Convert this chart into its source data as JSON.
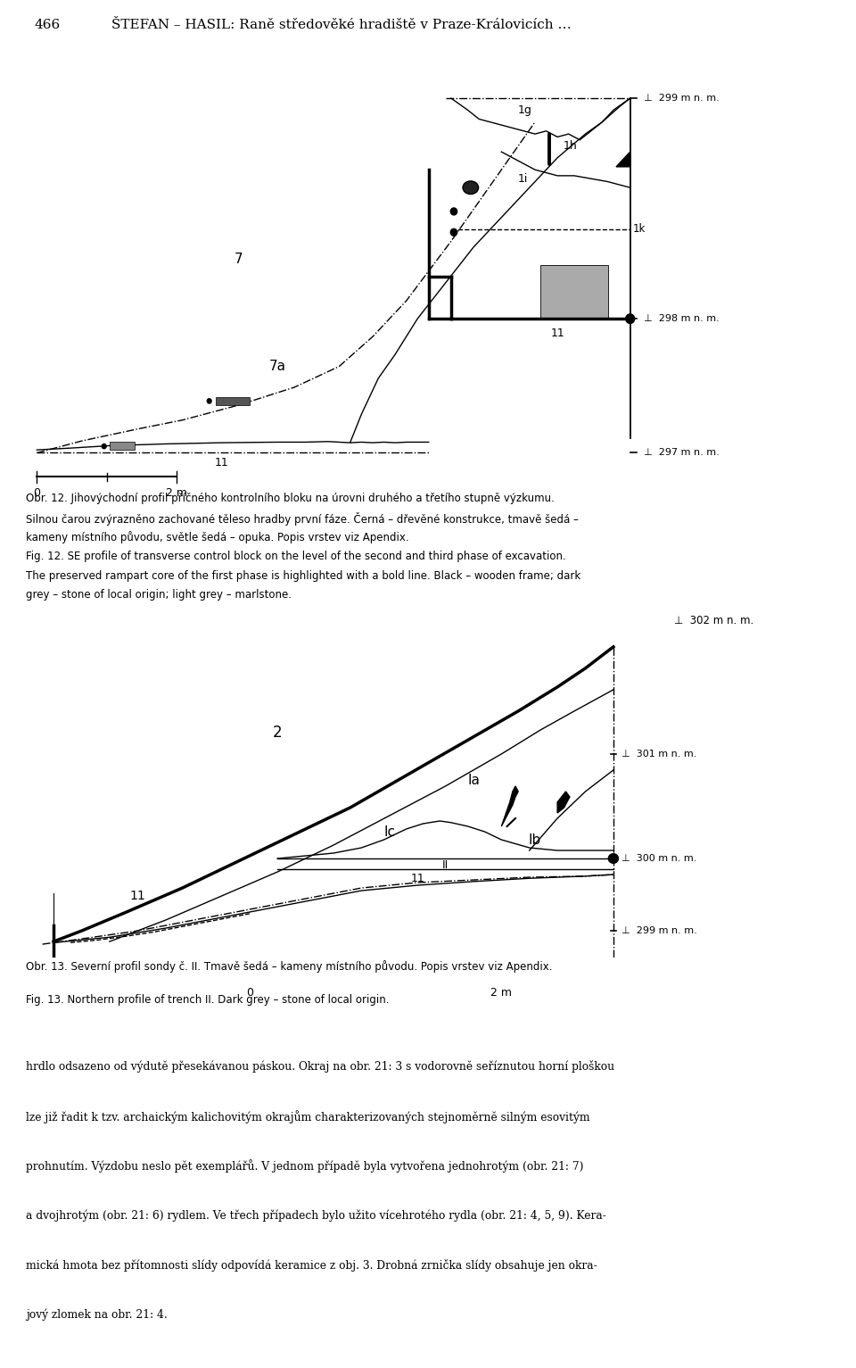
{
  "bg": "#ffffff",
  "lc": "#000000",
  "page_num": "466",
  "page_title": "ŠTEFAN – HASIL: Raně středověké hradiště v Praze-Královicích …",
  "cap12_cz1": "Obr. 12. Jihovýchodní profil příčného kontrolního bloku na úrovni druhého a třetího stupně výzkumu.",
  "cap12_cz2": "Silnou čarou zvýrazněno zachované těleso hradby první fáze. Černá – dřevěné konstrukce, tmavě šedá –",
  "cap12_cz3": "kameny místního původu, světle šedá – opuka. Popis vrstev viz Apendix.",
  "cap12_en1": "Fig. 12. SE profile of transverse control block on the level of the second and third phase of excavation.",
  "cap12_en2": "The preserved rampart core of the first phase is highlighted with a bold line. Black – wooden frame; dark",
  "cap12_en3": "grey – stone of local origin; light grey – marlstone.",
  "cap13_cz": "Obr. 13. Severní profil sondy č. II. Tmavě šedá – kameny místního původu. Popis vrstev viz Apendix.",
  "cap13_en": "Fig. 13. Northern profile of trench II. Dark grey – stone of local origin.",
  "body1": "hrdlo odsazeno od výdutě přesekávanou páskou. Okraj na obr. 21: 3 s vodorovně seříznutou horní ploškou",
  "body2": "lze již řadit k tzv. archaickým kalichovitým okrajům charakterizovaných stejnoměrně silným esovitým",
  "body3": "prohnutím. Výzdobu neslo pět exemplářů. V jednom případě byla vytvořena jednohrotým (obr. 21: 7)",
  "body4": "a dvojhrotým (obr. 21: 6) rydlem. Ve třech případech bylo užito vícehrotého rydla (obr. 21: 4, 5, 9). Kera-",
  "body5": "mická hmota bez přítomnosti slídy odpovídá keramice z obj. 3. Drobná zrnička slídy obsahuje jen okra-",
  "body6": "jový zlomek na obr. 21: 4."
}
